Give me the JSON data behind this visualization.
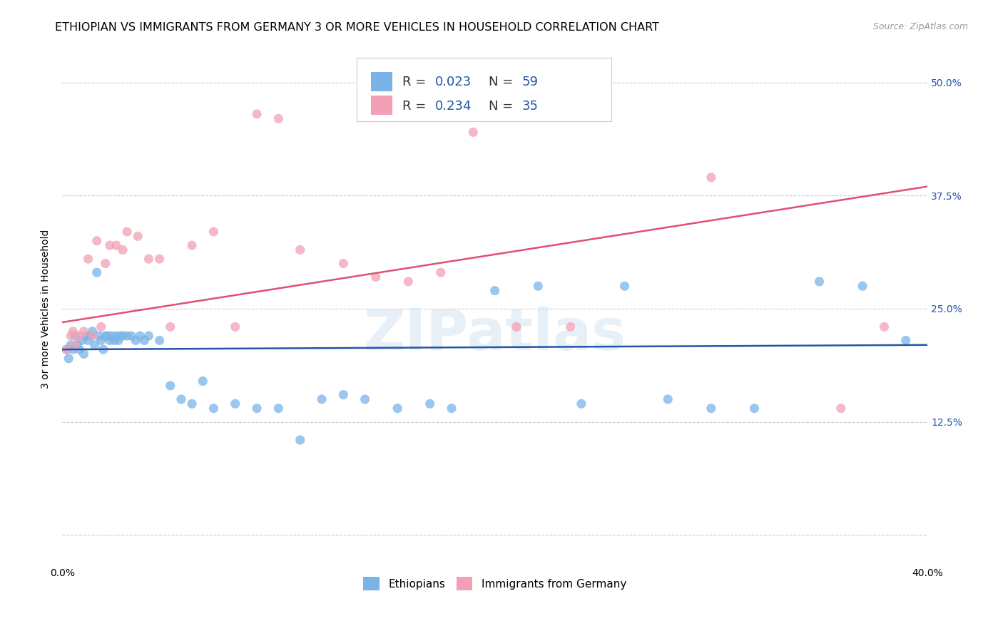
{
  "title": "ETHIOPIAN VS IMMIGRANTS FROM GERMANY 3 OR MORE VEHICLES IN HOUSEHOLD CORRELATION CHART",
  "source": "Source: ZipAtlas.com",
  "ylabel": "3 or more Vehicles in Household",
  "ytick_vals": [
    0,
    12.5,
    25.0,
    37.5,
    50.0
  ],
  "ytick_labels": [
    "",
    "12.5%",
    "25.0%",
    "37.5%",
    "50.0%"
  ],
  "xlim": [
    0.0,
    40.0
  ],
  "ylim": [
    -3.0,
    53.0
  ],
  "blue_color": "#7ab3e8",
  "pink_color": "#f2a0b5",
  "blue_line_color": "#2255aa",
  "pink_line_color": "#e05070",
  "watermark_text": "ZIPatlas",
  "blue_label": "Ethiopians",
  "pink_label": "Immigrants from Germany",
  "title_fontsize": 11.5,
  "tick_fontsize": 10,
  "source_fontsize": 9,
  "ylabel_fontsize": 10,
  "legend_fontsize": 13,
  "blue_x": [
    0.2,
    0.3,
    0.4,
    0.5,
    0.6,
    0.7,
    0.8,
    0.9,
    1.0,
    1.1,
    1.2,
    1.3,
    1.4,
    1.5,
    1.6,
    1.7,
    1.8,
    1.9,
    2.0,
    2.1,
    2.2,
    2.3,
    2.4,
    2.5,
    2.6,
    2.7,
    2.8,
    3.0,
    3.2,
    3.4,
    3.6,
    3.8,
    4.0,
    4.5,
    5.0,
    5.5,
    6.0,
    6.5,
    7.0,
    8.0,
    9.0,
    10.0,
    11.0,
    12.0,
    13.0,
    14.0,
    15.5,
    17.0,
    18.0,
    20.0,
    22.0,
    24.0,
    26.0,
    28.0,
    30.0,
    32.0,
    35.0,
    37.0,
    39.0
  ],
  "blue_y": [
    20.5,
    19.5,
    21.0,
    20.5,
    22.0,
    21.0,
    20.5,
    21.5,
    20.0,
    22.0,
    21.5,
    22.0,
    22.5,
    21.0,
    29.0,
    22.0,
    21.5,
    20.5,
    22.0,
    22.0,
    21.5,
    22.0,
    21.5,
    22.0,
    21.5,
    22.0,
    22.0,
    22.0,
    22.0,
    21.5,
    22.0,
    21.5,
    22.0,
    21.5,
    16.5,
    15.0,
    14.5,
    17.0,
    14.0,
    14.5,
    14.0,
    14.0,
    10.5,
    15.0,
    15.5,
    15.0,
    14.0,
    14.5,
    14.0,
    27.0,
    27.5,
    14.5,
    27.5,
    15.0,
    14.0,
    14.0,
    28.0,
    27.5,
    21.5
  ],
  "pink_x": [
    0.2,
    0.4,
    0.5,
    0.6,
    0.8,
    1.0,
    1.2,
    1.4,
    1.6,
    1.8,
    2.0,
    2.2,
    2.5,
    2.8,
    3.0,
    3.5,
    4.0,
    4.5,
    5.0,
    6.0,
    7.0,
    8.0,
    9.0,
    10.0,
    11.0,
    13.0,
    14.5,
    16.0,
    17.5,
    19.0,
    21.0,
    23.5,
    30.0,
    36.0,
    38.0
  ],
  "pink_y": [
    20.5,
    22.0,
    22.5,
    21.0,
    22.0,
    22.5,
    30.5,
    22.0,
    32.5,
    23.0,
    30.0,
    32.0,
    32.0,
    31.5,
    33.5,
    33.0,
    30.5,
    30.5,
    23.0,
    32.0,
    33.5,
    23.0,
    46.5,
    46.0,
    31.5,
    30.0,
    28.5,
    28.0,
    29.0,
    44.5,
    23.0,
    23.0,
    39.5,
    14.0,
    23.0
  ],
  "blue_trend": [
    20.5,
    21.0
  ],
  "pink_trend_x": [
    0,
    40
  ],
  "pink_trend_y": [
    23.5,
    38.5
  ]
}
